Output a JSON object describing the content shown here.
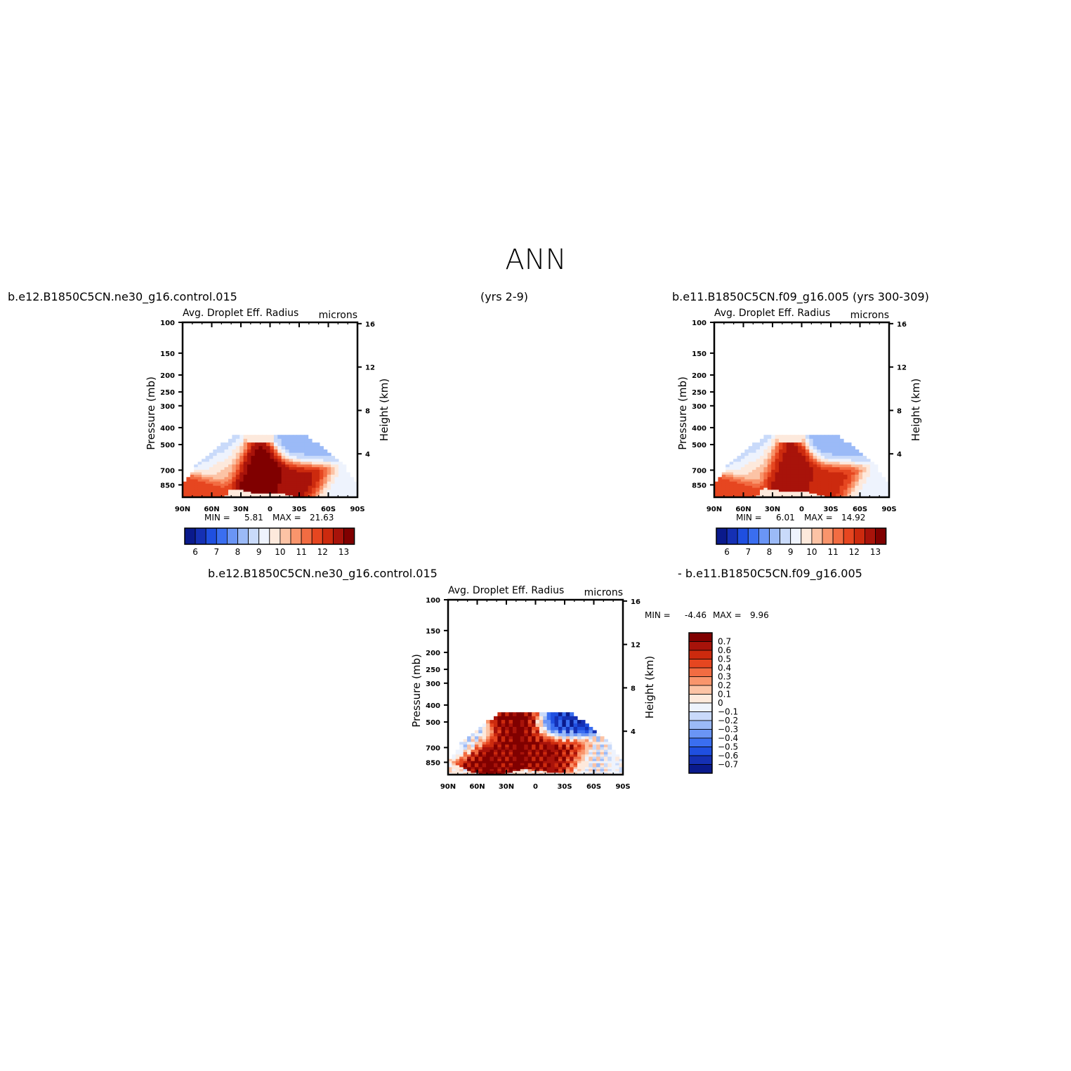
{
  "page": {
    "title": "ANN",
    "left_case": "b.e12.B1850C5CN.ne30_g16.control.015",
    "years_left": "(yrs 2-9)",
    "right_case": "b.e11.B1850C5CN.f09_g16.005 (yrs 300-309)",
    "diff_case_a": "b.e12.B1850C5CN.ne30_g16.control.015",
    "diff_case_b": "- b.e11.B1850C5CN.f09_g16.005"
  },
  "colors": {
    "palette": [
      "#0a1a8c",
      "#1530b4",
      "#1f4fe0",
      "#3a6ef0",
      "#6a95f5",
      "#9bbaf7",
      "#c9dafa",
      "#eef3fd",
      "#fde9dc",
      "#fcc3a5",
      "#f9956c",
      "#f26c42",
      "#e64620",
      "#cc2a0e",
      "#a8130a",
      "#800000"
    ]
  },
  "chart_data": [
    {
      "type": "heatmap",
      "title": "Avg. Droplet Eff. Radius",
      "units": "microns",
      "ylabel": "Pressure (mb)",
      "ylabel_right": "Height (km)",
      "x_ticks": [
        "90N",
        "60N",
        "30N",
        "0",
        "30S",
        "60S",
        "90S"
      ],
      "y_ticks": [
        "100",
        "150",
        "200",
        "250",
        "300",
        "400",
        "500",
        "700",
        "850"
      ],
      "y_ticks_right": [
        "16",
        "12",
        "8",
        "4"
      ],
      "stats": {
        "min_label": "MIN =",
        "min": "5.81",
        "max_label": "MAX =",
        "max": "21.63"
      },
      "colorbar": {
        "orientation": "horizontal",
        "labels": [
          "6",
          "7",
          "8",
          "9",
          "10",
          "11",
          "12",
          "13"
        ]
      },
      "ylim": [
        1000,
        100
      ],
      "xlim": [
        90,
        -90
      ],
      "regions": [
        {
          "lat": 65,
          "p": 560,
          "level": 4
        },
        {
          "lat": 55,
          "p": 640,
          "level": 9
        },
        {
          "lat": 80,
          "p": 900,
          "level": 12
        },
        {
          "lat": 10,
          "p": 720,
          "level": 15
        },
        {
          "lat": -35,
          "p": 770,
          "level": 14
        },
        {
          "lat": -40,
          "p": 520,
          "level": 5
        },
        {
          "lat": -75,
          "p": 850,
          "level": 7
        }
      ]
    },
    {
      "type": "heatmap",
      "title": "Avg. Droplet Eff. Radius",
      "units": "microns",
      "ylabel": "Pressure (mb)",
      "ylabel_right": "Height (km)",
      "x_ticks": [
        "90N",
        "60N",
        "30N",
        "0",
        "30S",
        "60S",
        "90S"
      ],
      "y_ticks": [
        "100",
        "150",
        "200",
        "250",
        "300",
        "400",
        "500",
        "700",
        "850"
      ],
      "y_ticks_right": [
        "16",
        "12",
        "8",
        "4"
      ],
      "stats": {
        "min_label": "MIN =",
        "min": "6.01",
        "max_label": "MAX =",
        "max": "14.92"
      },
      "colorbar": {
        "orientation": "horizontal",
        "labels": [
          "6",
          "7",
          "8",
          "9",
          "10",
          "11",
          "12",
          "13"
        ]
      },
      "ylim": [
        1000,
        100
      ],
      "xlim": [
        90,
        -90
      ],
      "regions": [
        {
          "lat": 65,
          "p": 560,
          "level": 4
        },
        {
          "lat": 55,
          "p": 640,
          "level": 9
        },
        {
          "lat": 80,
          "p": 900,
          "level": 12
        },
        {
          "lat": 10,
          "p": 710,
          "level": 14
        },
        {
          "lat": -35,
          "p": 770,
          "level": 13
        },
        {
          "lat": -40,
          "p": 520,
          "level": 5
        },
        {
          "lat": -75,
          "p": 850,
          "level": 7
        }
      ]
    },
    {
      "type": "heatmap",
      "title": "Avg. Droplet Eff. Radius",
      "units": "microns",
      "ylabel": "Pressure (mb)",
      "ylabel_right": "Height (km)",
      "x_ticks": [
        "90N",
        "60N",
        "30N",
        "0",
        "30S",
        "60S",
        "90S"
      ],
      "y_ticks": [
        "100",
        "150",
        "200",
        "250",
        "300",
        "400",
        "500",
        "700",
        "850"
      ],
      "y_ticks_right": [
        "16",
        "12",
        "8",
        "4"
      ],
      "stats": {
        "min_label": "MIN =",
        "min": "-4.46",
        "max_label": "MAX =",
        "max": "9.96"
      },
      "colorbar": {
        "orientation": "vertical",
        "labels": [
          "0.7",
          "0.6",
          "0.5",
          "0.4",
          "0.3",
          "0.2",
          "0.1",
          "0",
          "-0.1",
          "-0.2",
          "-0.3",
          "-0.4",
          "-0.5",
          "-0.6",
          "-0.7"
        ]
      },
      "ylim": [
        1000,
        100
      ],
      "xlim": [
        90,
        -90
      ],
      "regions": [
        {
          "lat": 45,
          "p": 780,
          "level": 15
        },
        {
          "lat": 0,
          "p": 700,
          "level": 15
        },
        {
          "lat": -25,
          "p": 750,
          "level": 14
        },
        {
          "lat": 15,
          "p": 470,
          "level": 15
        },
        {
          "lat": -25,
          "p": 490,
          "level": 1
        },
        {
          "lat": 75,
          "p": 620,
          "level": 6
        },
        {
          "lat": -65,
          "p": 830,
          "level": 7
        }
      ]
    }
  ]
}
